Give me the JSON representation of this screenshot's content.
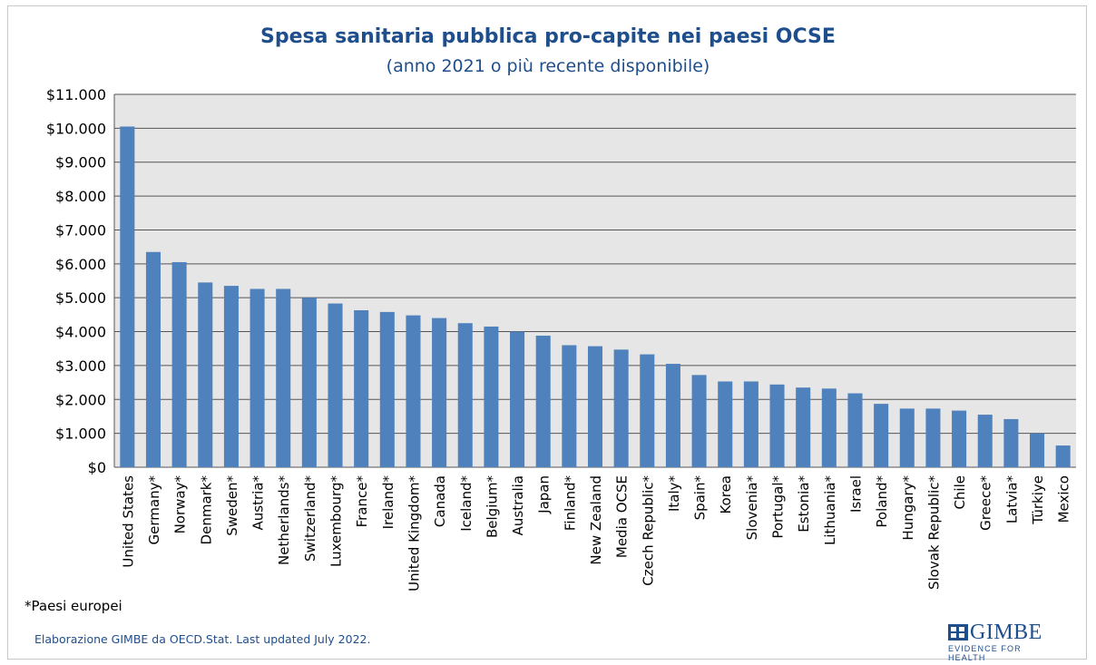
{
  "title": "Spesa sanitaria pubblica pro-capite nei paesi OCSE",
  "subtitle": "(anno 2021 o più recente disponibile)",
  "footnote": "*Paesi europei",
  "source": "Elaborazione GIMBE da OECD.Stat. Last updated July 2022.",
  "logo": {
    "word": "GIMBE",
    "tagline": "EVIDENCE FOR HEALTH"
  },
  "colors": {
    "bar": "#4f81bd",
    "plot_bg": "#e6e6e6",
    "grid": "#555555",
    "title": "#1f4e8c"
  },
  "chart_data": {
    "type": "bar",
    "title": "Spesa sanitaria pubblica pro-capite nei paesi OCSE",
    "subtitle": "(anno 2021 o più recente disponibile)",
    "xlabel": "",
    "ylabel": "",
    "ylim": [
      0,
      11000
    ],
    "yticks": [
      0,
      1000,
      2000,
      3000,
      4000,
      5000,
      6000,
      7000,
      8000,
      9000,
      10000,
      11000
    ],
    "ytick_labels": [
      "$0",
      "$1.000",
      "$2.000",
      "$3.000",
      "$4.000",
      "$5.000",
      "$6.000",
      "$7.000",
      "$8.000",
      "$9.000",
      "$10.000",
      "$11.000"
    ],
    "grid": true,
    "legend": "none",
    "categories": [
      "United States",
      "Germany*",
      "Norway*",
      "Denmark*",
      "Sweden*",
      "Austria*",
      "Netherlands*",
      "Switzerland*",
      "Luxembourg*",
      "France*",
      "Ireland*",
      "United Kingdom*",
      "Canada",
      "Iceland*",
      "Belgium*",
      "Australia",
      "Japan",
      "Finland*",
      "New Zealand",
      "Media OCSE",
      "Czech Republic*",
      "Italy*",
      "Spain*",
      "Korea",
      "Slovenia*",
      "Portugal*",
      "Estonia*",
      "Lithuania*",
      "Israel",
      "Poland*",
      "Hungary*",
      "Slovak Republic*",
      "Chile",
      "Greece*",
      "Latvia*",
      "Türkiye",
      "Mexico"
    ],
    "values": [
      10050,
      6350,
      6050,
      5450,
      5350,
      5260,
      5260,
      5000,
      4830,
      4630,
      4580,
      4480,
      4400,
      4250,
      4150,
      4000,
      3880,
      3600,
      3570,
      3470,
      3330,
      3050,
      2720,
      2530,
      2530,
      2440,
      2350,
      2320,
      2180,
      1870,
      1730,
      1730,
      1670,
      1550,
      1420,
      1000,
      640
    ]
  }
}
